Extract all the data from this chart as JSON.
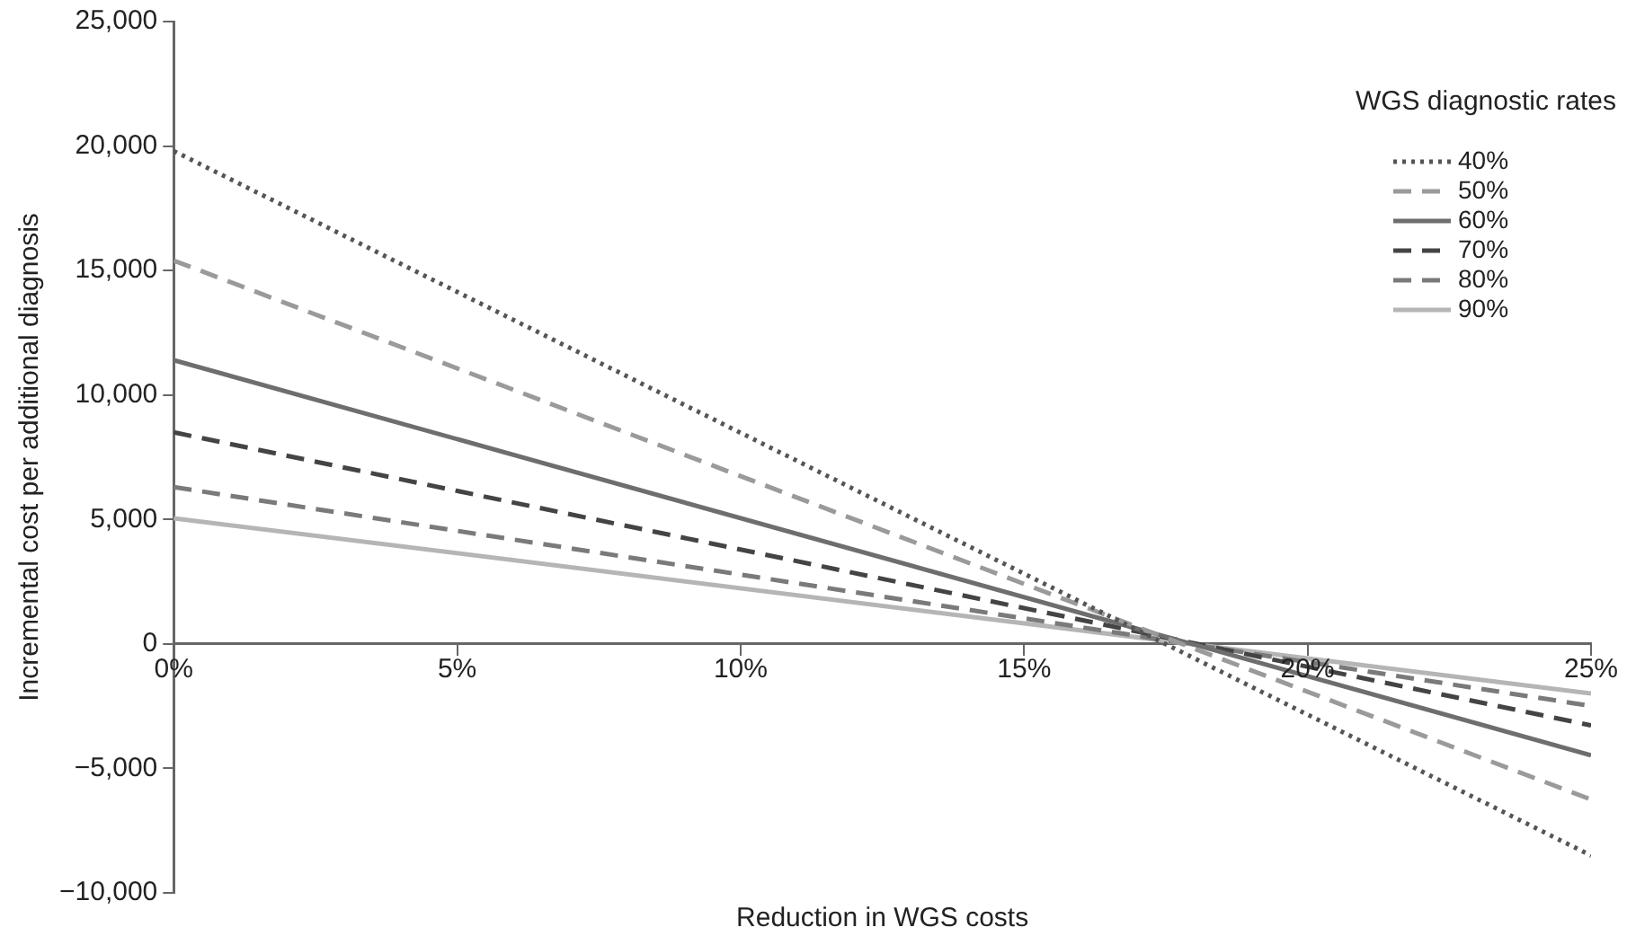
{
  "chart_data": {
    "type": "line",
    "xlabel": "Reduction in WGS costs",
    "ylabel": "Incremental cost per additional diagnosis",
    "legend_title": "WGS diagnostic rates",
    "legend": "top right",
    "grid": false,
    "marker": "none",
    "x": [
      0,
      25
    ],
    "xlim": [
      0,
      25
    ],
    "xticks": [
      {
        "value": 0,
        "label": "0%"
      },
      {
        "value": 5,
        "label": "5%"
      },
      {
        "value": 10,
        "label": "10%"
      },
      {
        "value": 15,
        "label": "15%"
      },
      {
        "value": 20,
        "label": "20%"
      },
      {
        "value": 25,
        "label": "25%"
      }
    ],
    "ylim": [
      -10000,
      25000
    ],
    "yticks": [
      {
        "value": -10000,
        "label": "−10,000"
      },
      {
        "value": -5000,
        "label": "−5,000"
      },
      {
        "value": 0,
        "label": "0"
      },
      {
        "value": 5000,
        "label": "5,000"
      },
      {
        "value": 10000,
        "label": "10,000"
      },
      {
        "value": 15000,
        "label": "15,000"
      },
      {
        "value": 20000,
        "label": "20,000"
      },
      {
        "value": 25000,
        "label": "25,000"
      }
    ],
    "series": [
      {
        "name": "40%",
        "color": "#555555",
        "line_style": "dotted",
        "values": [
          19800,
          -8500
        ]
      },
      {
        "name": "50%",
        "color": "#9a9a9a",
        "line_style": "dashed",
        "values": [
          15400,
          -6250
        ]
      },
      {
        "name": "60%",
        "color": "#6e6e6e",
        "line_style": "solid",
        "values": [
          11400,
          -4470
        ]
      },
      {
        "name": "70%",
        "color": "#444444",
        "line_style": "dashed",
        "values": [
          8500,
          -3270
        ]
      },
      {
        "name": "80%",
        "color": "#7a7a7a",
        "line_style": "dashed",
        "values": [
          6300,
          -2490
        ]
      },
      {
        "name": "90%",
        "color": "#b5b5b5",
        "line_style": "solid",
        "values": [
          5050,
          -1990
        ]
      }
    ]
  }
}
